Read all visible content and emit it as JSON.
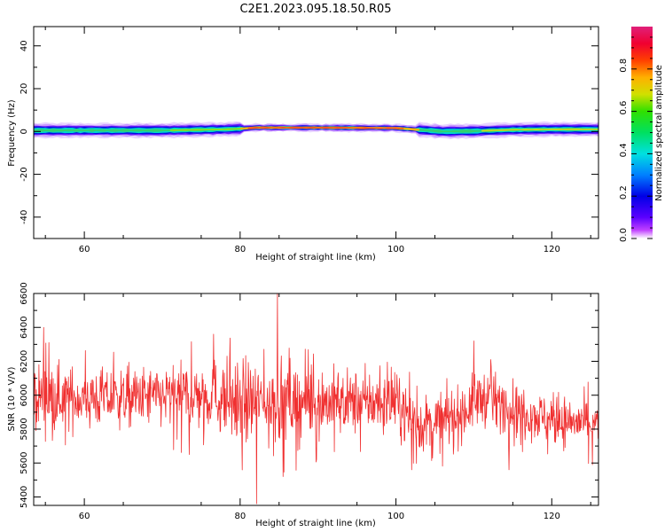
{
  "title": "C2E1.2023.095.18.50.R05",
  "chart_data": [
    {
      "type": "heatmap",
      "xlabel": "Height of straight line (km)",
      "ylabel": "Frequency (Hz)",
      "xlim": [
        53.5,
        126
      ],
      "ylim": [
        -50,
        49
      ],
      "xticks": [
        60,
        80,
        100,
        120
      ],
      "yticks": [
        -40,
        -20,
        0,
        20,
        40
      ],
      "ridge_center_hz": [
        [
          53.5,
          0.5
        ],
        [
          60,
          0.5
        ],
        [
          70,
          0.5
        ],
        [
          78,
          1.0
        ],
        [
          80,
          1.3
        ],
        [
          82,
          1.8
        ],
        [
          90,
          1.8
        ],
        [
          100,
          1.6
        ],
        [
          103,
          0.8
        ],
        [
          106,
          0.0
        ],
        [
          110,
          0.2
        ],
        [
          115,
          0.8
        ],
        [
          120,
          1.0
        ],
        [
          126,
          1.0
        ]
      ],
      "colorbar": {
        "label": "Normalized spectral amplitude",
        "range": [
          0,
          1
        ],
        "ticks": [
          "0.0",
          "0.2",
          "0.4",
          "0.6",
          "0.8"
        ]
      }
    },
    {
      "type": "line",
      "xlabel": "Height of straight line (km)",
      "ylabel": "SNR (10 * V/V)",
      "xlim": [
        53.5,
        126
      ],
      "ylim": [
        5350,
        6600
      ],
      "xticks": [
        60,
        80,
        100,
        120
      ],
      "yticks": [
        5400,
        5600,
        5800,
        6000,
        6200,
        6400,
        6600
      ],
      "color": "#f03030",
      "series": [
        {
          "name": "SNR",
          "envelope": [
            {
              "x": 54,
              "mean": 6000,
              "spread": 170
            },
            {
              "x": 60,
              "mean": 5980,
              "spread": 160
            },
            {
              "x": 70,
              "mean": 5990,
              "spread": 160
            },
            {
              "x": 76,
              "mean": 6000,
              "spread": 200
            },
            {
              "x": 80,
              "mean": 5960,
              "spread": 220
            },
            {
              "x": 86,
              "mean": 5960,
              "spread": 220
            },
            {
              "x": 94,
              "mean": 5960,
              "spread": 170
            },
            {
              "x": 100,
              "mean": 5950,
              "spread": 160
            },
            {
              "x": 103,
              "mean": 5820,
              "spread": 150
            },
            {
              "x": 108,
              "mean": 5880,
              "spread": 150
            },
            {
              "x": 111,
              "mean": 5990,
              "spread": 150
            },
            {
              "x": 120,
              "mean": 5850,
              "spread": 130
            },
            {
              "x": 126,
              "mean": 5830,
              "spread": 130
            }
          ],
          "peaks": [
            {
              "x": 84.8,
              "y": 6600
            },
            {
              "x": 82.1,
              "y": 5360
            },
            {
              "x": 76.6,
              "y": 6360
            },
            {
              "x": 54.8,
              "y": 6400
            },
            {
              "x": 85.5,
              "y": 5520
            },
            {
              "x": 110,
              "y": 6320
            },
            {
              "x": 114.5,
              "y": 5560
            },
            {
              "x": 102,
              "y": 5560
            }
          ]
        }
      ]
    }
  ]
}
